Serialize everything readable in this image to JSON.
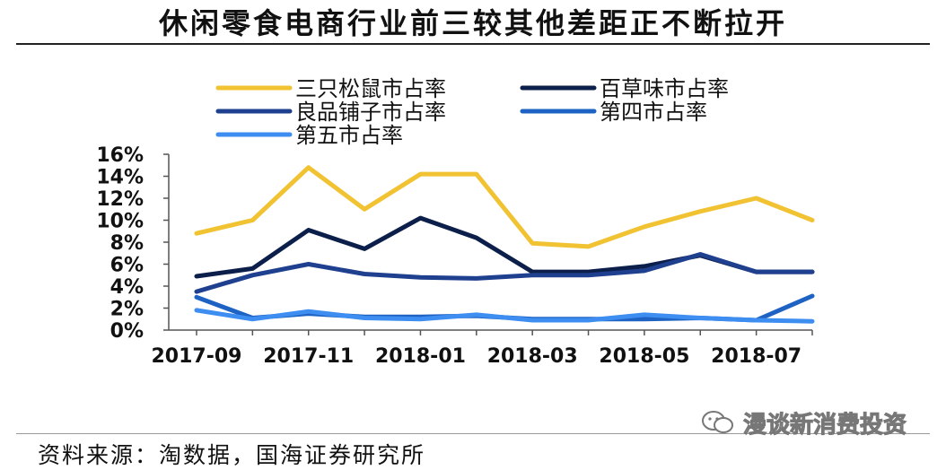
{
  "title": "休闲零食电商行业前三较其他差距正不断拉开",
  "source": "资料来源：淘数据，国海证券研究所",
  "watermark": "漫谈新消费投资",
  "chart_data": {
    "type": "line",
    "title": "",
    "xlabel": "",
    "ylabel": "",
    "ylim": [
      0,
      16
    ],
    "y_ticks": [
      "0%",
      "2%",
      "4%",
      "6%",
      "8%",
      "10%",
      "12%",
      "14%",
      "16%"
    ],
    "x": [
      "2017-09",
      "2017-10",
      "2017-11",
      "2017-12",
      "2018-01",
      "2018-02",
      "2018-03",
      "2018-04",
      "2018-05",
      "2018-06",
      "2018-07",
      "2018-08"
    ],
    "x_tick_labels": [
      "2017-09",
      "2017-11",
      "2018-01",
      "2018-03",
      "2018-05",
      "2018-07"
    ],
    "legend_position": "top",
    "grid": false,
    "series": [
      {
        "name": "三只松鼠市占率",
        "color": "#f1c232",
        "values": [
          8.8,
          10.0,
          14.8,
          11.0,
          14.2,
          14.2,
          7.9,
          7.6,
          9.4,
          10.8,
          12.0,
          10.0
        ]
      },
      {
        "name": "百草味市占率",
        "color": "#0b1f4a",
        "values": [
          4.9,
          5.6,
          9.1,
          7.4,
          10.2,
          8.4,
          5.3,
          5.3,
          5.8,
          6.8,
          5.3,
          5.3
        ]
      },
      {
        "name": "良品铺子市占率",
        "color": "#1f3f8f",
        "values": [
          3.5,
          5.0,
          6.0,
          5.1,
          4.8,
          4.7,
          5.0,
          5.0,
          5.4,
          6.9,
          5.3,
          5.3
        ]
      },
      {
        "name": "第四市占率",
        "color": "#1e63c4",
        "values": [
          3.0,
          1.1,
          1.5,
          1.2,
          1.2,
          1.3,
          1.0,
          1.0,
          1.0,
          1.1,
          0.9,
          3.1
        ]
      },
      {
        "name": "第五市占率",
        "color": "#3d8ef0",
        "values": [
          1.8,
          1.0,
          1.7,
          1.1,
          1.0,
          1.4,
          0.9,
          0.9,
          1.4,
          1.1,
          0.9,
          0.8
        ]
      }
    ]
  }
}
